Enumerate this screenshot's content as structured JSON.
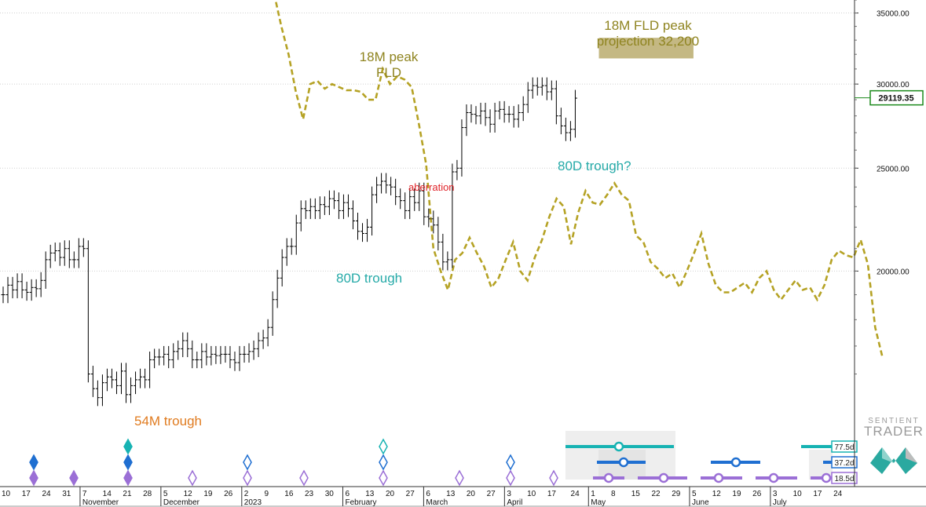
{
  "chart_data": {
    "type": "line",
    "yaxis": {
      "range": [
        14000,
        36000
      ],
      "ticks": [
        "35000.00",
        "30000.00",
        "25000.00",
        "20000.00"
      ],
      "log_scale": true,
      "position": "right"
    },
    "current_price": "29119.35",
    "x_tick_labels": [
      "10",
      "17",
      "24",
      "31",
      "7",
      "14",
      "21",
      "28",
      "5",
      "12",
      "19",
      "26",
      "2",
      "9",
      "16",
      "23",
      "30",
      "6",
      "13",
      "20",
      "27",
      "6",
      "13",
      "20",
      "27",
      "3",
      "10",
      "17",
      "24",
      "1",
      "8",
      "15",
      "22",
      "29",
      "5",
      "12",
      "19",
      "26",
      "3",
      "10",
      "17",
      "24"
    ],
    "month_labels": [
      "November",
      "December",
      "2023",
      "February",
      "March",
      "April",
      "May",
      "June",
      "July"
    ],
    "series": [
      {
        "kind": "ohlc",
        "color": "#000000",
        "points": [
          [
            0,
            19000
          ],
          [
            1,
            19400
          ],
          [
            2,
            19200
          ],
          [
            3,
            19550
          ],
          [
            4,
            19200
          ],
          [
            5,
            19100
          ],
          [
            6,
            19300
          ],
          [
            7,
            19250
          ],
          [
            8,
            19600
          ],
          [
            9,
            20500
          ],
          [
            10,
            20800
          ],
          [
            11,
            20900
          ],
          [
            12,
            20600
          ],
          [
            13,
            21000
          ],
          [
            14,
            20500
          ],
          [
            15,
            20500
          ],
          [
            16,
            21100
          ],
          [
            17,
            21000
          ],
          [
            18,
            16000
          ],
          [
            19,
            15500
          ],
          [
            20,
            15200
          ],
          [
            21,
            15700
          ],
          [
            22,
            15900
          ],
          [
            23,
            15800
          ],
          [
            24,
            15600
          ],
          [
            25,
            16100
          ],
          [
            26,
            15300
          ],
          [
            27,
            15600
          ],
          [
            28,
            15800
          ],
          [
            29,
            15900
          ],
          [
            30,
            15800
          ],
          [
            31,
            16500
          ],
          [
            32,
            16600
          ],
          [
            33,
            16600
          ],
          [
            34,
            16700
          ],
          [
            35,
            16500
          ],
          [
            36,
            16800
          ],
          [
            37,
            16900
          ],
          [
            38,
            17200
          ],
          [
            39,
            16900
          ],
          [
            40,
            16500
          ],
          [
            41,
            16500
          ],
          [
            42,
            16800
          ],
          [
            43,
            16600
          ],
          [
            44,
            16700
          ],
          [
            45,
            16650
          ],
          [
            46,
            16700
          ],
          [
            47,
            16700
          ],
          [
            48,
            16500
          ],
          [
            49,
            16400
          ],
          [
            50,
            16700
          ],
          [
            51,
            16700
          ],
          [
            52,
            16800
          ],
          [
            53,
            16900
          ],
          [
            54,
            17200
          ],
          [
            55,
            17300
          ],
          [
            56,
            17700
          ],
          [
            57,
            18800
          ],
          [
            58,
            19700
          ],
          [
            59,
            20600
          ],
          [
            60,
            21100
          ],
          [
            61,
            21100
          ],
          [
            62,
            22200
          ],
          [
            63,
            22900
          ],
          [
            64,
            22800
          ],
          [
            65,
            23000
          ],
          [
            66,
            22800
          ],
          [
            67,
            23100
          ],
          [
            68,
            23000
          ],
          [
            69,
            23400
          ],
          [
            70,
            23300
          ],
          [
            71,
            22800
          ],
          [
            72,
            23200
          ],
          [
            73,
            22900
          ],
          [
            74,
            22300
          ],
          [
            75,
            21800
          ],
          [
            76,
            21700
          ],
          [
            77,
            22000
          ],
          [
            78,
            23600
          ],
          [
            79,
            24100
          ],
          [
            80,
            24300
          ],
          [
            81,
            24100
          ],
          [
            82,
            24000
          ],
          [
            83,
            23500
          ],
          [
            84,
            23300
          ],
          [
            85,
            22800
          ],
          [
            86,
            23500
          ],
          [
            87,
            23200
          ],
          [
            88,
            23800
          ],
          [
            89,
            22500
          ],
          [
            90,
            22400
          ],
          [
            91,
            22100
          ],
          [
            92,
            21300
          ],
          [
            93,
            20400
          ],
          [
            94,
            20500
          ],
          [
            95,
            24800
          ],
          [
            96,
            25000
          ],
          [
            97,
            27300
          ],
          [
            98,
            28200
          ],
          [
            99,
            28100
          ],
          [
            100,
            28000
          ],
          [
            101,
            28300
          ],
          [
            102,
            27900
          ],
          [
            103,
            27500
          ],
          [
            104,
            28300
          ],
          [
            105,
            28400
          ],
          [
            106,
            28100
          ],
          [
            107,
            28100
          ],
          [
            108,
            27800
          ],
          [
            109,
            28200
          ],
          [
            110,
            28700
          ],
          [
            111,
            29600
          ],
          [
            112,
            29900
          ],
          [
            113,
            29800
          ],
          [
            114,
            29900
          ],
          [
            115,
            29500
          ],
          [
            116,
            29700
          ],
          [
            117,
            28000
          ],
          [
            118,
            27400
          ],
          [
            119,
            27000
          ],
          [
            120,
            27200
          ],
          [
            121,
            29100
          ]
        ]
      },
      {
        "kind": "dashed-fld",
        "color": "#b5a224",
        "points": [
          [
            26,
            36500
          ],
          [
            27,
            34000
          ],
          [
            28,
            32000
          ],
          [
            29,
            29500
          ],
          [
            30,
            27800
          ],
          [
            31,
            30000
          ],
          [
            32,
            30200
          ],
          [
            33,
            29700
          ],
          [
            34,
            30000
          ],
          [
            35,
            29800
          ],
          [
            36,
            29600
          ],
          [
            37,
            29600
          ],
          [
            38,
            29500
          ],
          [
            39,
            29000
          ],
          [
            40,
            29000
          ],
          [
            41,
            31000
          ],
          [
            42,
            30000
          ],
          [
            43,
            30500
          ],
          [
            44,
            30300
          ],
          [
            45,
            29800
          ],
          [
            46,
            27500
          ],
          [
            47,
            25200
          ],
          [
            48,
            21000
          ],
          [
            49,
            20000
          ],
          [
            50,
            19200
          ],
          [
            51,
            20500
          ],
          [
            52,
            20800
          ],
          [
            53,
            21500
          ],
          [
            54,
            20800
          ],
          [
            55,
            20200
          ],
          [
            56,
            19300
          ],
          [
            57,
            19700
          ],
          [
            58,
            20500
          ],
          [
            59,
            21300
          ],
          [
            60,
            20000
          ],
          [
            61,
            19600
          ],
          [
            62,
            20600
          ],
          [
            63,
            21400
          ],
          [
            64,
            22500
          ],
          [
            65,
            23400
          ],
          [
            66,
            23000
          ],
          [
            67,
            21200
          ],
          [
            68,
            22700
          ],
          [
            69,
            23800
          ],
          [
            70,
            23200
          ],
          [
            71,
            23100
          ],
          [
            72,
            23600
          ],
          [
            73,
            24200
          ],
          [
            74,
            23600
          ],
          [
            75,
            23300
          ],
          [
            76,
            21600
          ],
          [
            77,
            21300
          ],
          [
            78,
            20400
          ],
          [
            79,
            20100
          ],
          [
            80,
            19700
          ],
          [
            81,
            19900
          ],
          [
            82,
            19300
          ],
          [
            83,
            20000
          ],
          [
            84,
            20800
          ],
          [
            85,
            21700
          ],
          [
            86,
            20300
          ],
          [
            87,
            19400
          ],
          [
            88,
            19100
          ],
          [
            89,
            19100
          ],
          [
            90,
            19300
          ],
          [
            91,
            19500
          ],
          [
            92,
            19100
          ],
          [
            93,
            19700
          ],
          [
            94,
            20000
          ],
          [
            95,
            19200
          ],
          [
            96,
            18800
          ],
          [
            97,
            19200
          ],
          [
            98,
            19600
          ],
          [
            99,
            19200
          ],
          [
            100,
            19300
          ],
          [
            101,
            18800
          ],
          [
            102,
            19400
          ],
          [
            103,
            20500
          ],
          [
            104,
            20900
          ],
          [
            105,
            20700
          ],
          [
            106,
            20600
          ],
          [
            107,
            21400
          ],
          [
            108,
            20300
          ],
          [
            109,
            17700
          ],
          [
            110,
            16600
          ]
        ]
      }
    ],
    "annotations": {
      "fld_peak": "18M peak\nFLD",
      "projection": "18M FLD peak\nprojection 32,200",
      "projection_level": 32200,
      "aberration": "aberration",
      "trough_80d_1": "80D trough",
      "trough_80d_2": "80D trough?",
      "trough_54m": "54M trough"
    },
    "cycle_panel": {
      "labels": [
        "77.5d",
        "37.2d",
        "18.5d"
      ],
      "colors": [
        "#17b3b3",
        "#1f6fd1",
        "#9b6fd6"
      ],
      "rows": [
        {
          "color": "#17b3b3",
          "markers": [
            {
              "x": 21,
              "fill": true
            },
            {
              "x": 71,
              "fill": false
            }
          ]
        },
        {
          "color": "#1f6fd1",
          "markers": [
            {
              "x": 5,
              "fill": true
            },
            {
              "x": 21,
              "fill": true
            },
            {
              "x": 45,
              "fill": false
            },
            {
              "x": 71,
              "fill": false
            },
            {
              "x": 94,
              "fill": false
            }
          ]
        },
        {
          "color": "#9b6fd6",
          "markers": [
            {
              "x": 5,
              "fill": true
            },
            {
              "x": 12,
              "fill": true
            },
            {
              "x": 21,
              "fill": true
            },
            {
              "x": 36,
              "fill": false
            },
            {
              "x": 45,
              "fill": false
            },
            {
              "x": 55,
              "fill": false
            },
            {
              "x": 71,
              "fill": false
            },
            {
              "x": 85,
              "fill": false
            },
            {
              "x": 94,
              "fill": false
            },
            {
              "x": 103,
              "fill": false
            }
          ]
        }
      ]
    }
  },
  "logo": {
    "line1": "SENTIENT",
    "line2": "TRADER"
  }
}
